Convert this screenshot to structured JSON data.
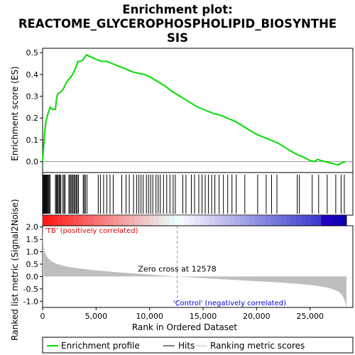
{
  "chart_data": {
    "type": "line",
    "title_line1": "Enrichment plot:",
    "title_line2": "REACTOME_GLYCEROPHOSPHOLIPID_BIOSYNTHE",
    "title_line3": "SIS",
    "es_panel": {
      "ylabel": "Enrichment score (ES)",
      "ylim": [
        -0.05,
        0.52
      ],
      "yticks": [
        0.0,
        0.1,
        0.2,
        0.3,
        0.4,
        0.5
      ],
      "ytick_labels": [
        "0.0",
        "0.1",
        "0.2",
        "0.3",
        "0.4",
        "0.5"
      ],
      "curve": {
        "name": "Enrichment profile",
        "color": "#00dd00",
        "x": [
          0,
          100,
          200,
          300,
          500,
          700,
          900,
          1200,
          1300,
          1400,
          1700,
          1900,
          2100,
          2300,
          2500,
          2800,
          3100,
          3300,
          3600,
          3800,
          4100,
          4500,
          5000,
          5500,
          6000,
          6500,
          7000,
          7500,
          8000,
          8500,
          9000,
          9500,
          10000,
          10500,
          11000,
          11500,
          12000,
          12500,
          13000,
          13500,
          14000,
          14500,
          15000,
          15500,
          16000,
          16500,
          17000,
          17500,
          18000,
          18500,
          19000,
          19500,
          20000,
          20500,
          21000,
          21500,
          22000,
          22500,
          23000,
          23500,
          23900,
          24200,
          24600,
          25000,
          25400,
          25700,
          26000,
          26400,
          26800,
          27200,
          27600,
          28000,
          28300
        ],
        "y": [
          0.0,
          0.07,
          0.14,
          0.18,
          0.22,
          0.25,
          0.24,
          0.24,
          0.29,
          0.31,
          0.32,
          0.33,
          0.35,
          0.37,
          0.38,
          0.4,
          0.43,
          0.46,
          0.46,
          0.47,
          0.49,
          0.48,
          0.47,
          0.46,
          0.46,
          0.45,
          0.44,
          0.43,
          0.42,
          0.41,
          0.405,
          0.4,
          0.39,
          0.375,
          0.36,
          0.345,
          0.325,
          0.31,
          0.295,
          0.28,
          0.265,
          0.25,
          0.24,
          0.23,
          0.22,
          0.215,
          0.205,
          0.195,
          0.185,
          0.17,
          0.155,
          0.14,
          0.125,
          0.115,
          0.105,
          0.095,
          0.085,
          0.07,
          0.055,
          0.04,
          0.03,
          0.025,
          0.015,
          0.005,
          0.0,
          0.01,
          0.005,
          0.0,
          -0.005,
          -0.01,
          -0.015,
          -0.005,
          0.0
        ]
      }
    },
    "hits": {
      "name": "Hits",
      "positions": [
        60,
        130,
        200,
        260,
        330,
        400,
        470,
        540,
        610,
        700,
        1200,
        1280,
        1360,
        1450,
        1540,
        1620,
        1710,
        1900,
        2000,
        2100,
        2450,
        2550,
        2650,
        2750,
        2850,
        2950,
        3050,
        3150,
        3250,
        3350,
        3800,
        3900,
        4000,
        4150,
        5200,
        5400,
        5700,
        6000,
        6300,
        6600,
        7400,
        7800,
        8100,
        8500,
        8800,
        9000,
        9200,
        9400,
        9700,
        9900,
        10100,
        10300,
        10600,
        10800,
        11000,
        11300,
        11600,
        11900,
        12200,
        12400,
        13100,
        13400,
        13900,
        14200,
        14600,
        14900,
        15200,
        15500,
        15800,
        16100,
        16500,
        16900,
        17300,
        17700,
        18100,
        18900,
        20100,
        20900,
        21400,
        21900,
        23800,
        24000,
        25200,
        25800,
        26600,
        27400,
        27900,
        28200
      ]
    },
    "ranking_panel": {
      "ylabel": "Ranked list metric (Signal2Noise)",
      "ylim": [
        -1.25,
        2.05
      ],
      "yticks": [
        -1.0,
        -0.5,
        0.0,
        0.5,
        1.0,
        1.5,
        2.0
      ],
      "ytick_labels": [
        "-1.0",
        "-0.5",
        "0.0",
        "0.5",
        "1.0",
        "1.5",
        "2.0"
      ],
      "positive_label": "'TB' (positively correlated)",
      "negative_label": "'Control' (negatively correlated)",
      "zero_cross_label": "Zero cross at 12578",
      "zero_cross": 12578,
      "metric_x": [
        0,
        50,
        150,
        300,
        500,
        800,
        1200,
        1800,
        2500,
        3500,
        5000,
        7000,
        9000,
        11000,
        12578,
        14000,
        16000,
        18000,
        20000,
        22000,
        24000,
        25500,
        26500,
        27200,
        27700,
        28000,
        28200,
        28300,
        28400
      ],
      "metric_y": [
        2.0,
        1.35,
        1.05,
        0.88,
        0.75,
        0.63,
        0.53,
        0.45,
        0.38,
        0.32,
        0.25,
        0.17,
        0.11,
        0.05,
        0.0,
        -0.04,
        -0.09,
        -0.14,
        -0.19,
        -0.24,
        -0.3,
        -0.37,
        -0.44,
        -0.52,
        -0.62,
        -0.75,
        -0.92,
        -1.1,
        -1.25
      ]
    },
    "xlabel": "Rank in Ordered Dataset",
    "xlim": [
      0,
      29000
    ],
    "xticks": [
      0,
      5000,
      10000,
      15000,
      20000,
      25000
    ],
    "xtick_labels": [
      "0",
      "5,000",
      "10,000",
      "15,000",
      "20,000",
      "25,000"
    ],
    "n_genes": 28400,
    "legend": [
      {
        "label": "Enrichment profile",
        "color": "#00dd00"
      },
      {
        "label": "Hits",
        "color": "#000000"
      },
      {
        "label": "Ranking metric scores",
        "color": "#bbbbbb"
      }
    ],
    "colors": {
      "positive_text": "#dd0000",
      "negative_text": "#0000dd",
      "metric_fill": "#bebebe",
      "zero_line": "#999999"
    }
  }
}
